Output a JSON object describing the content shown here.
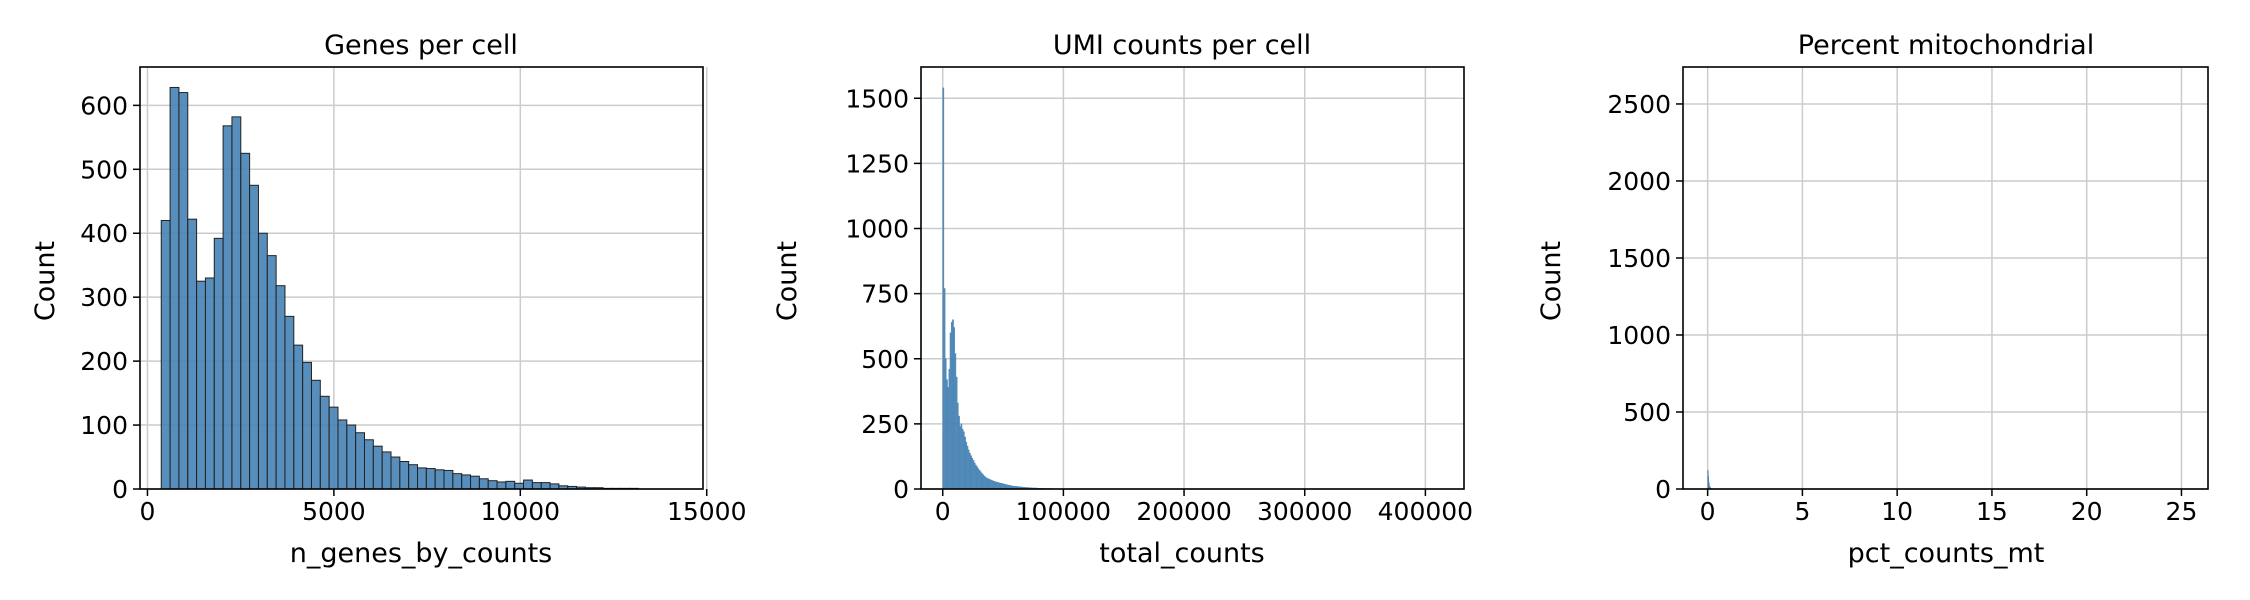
{
  "chart_data": [
    {
      "type": "bar",
      "title": "Genes per cell",
      "xlabel": "n_genes_by_counts",
      "ylabel": "Count",
      "xlim": [
        -200,
        14900
      ],
      "ylim": [
        0,
        660
      ],
      "xticks": [
        0,
        5000,
        10000,
        15000
      ],
      "xtick_labels": [
        "0",
        "5000",
        "10000",
        "15000"
      ],
      "yticks": [
        0,
        100,
        200,
        300,
        400,
        500,
        600
      ],
      "ytick_labels": [
        "0",
        "100",
        "200",
        "300",
        "400",
        "500",
        "600"
      ],
      "grid": true,
      "bin_start": 370,
      "bin_width": 237,
      "values": [
        420,
        628,
        620,
        422,
        325,
        330,
        392,
        568,
        582,
        525,
        475,
        400,
        365,
        318,
        270,
        225,
        198,
        170,
        145,
        128,
        108,
        100,
        88,
        77,
        67,
        58,
        50,
        43,
        38,
        33,
        32,
        30,
        29,
        24,
        22,
        20,
        16,
        13,
        11,
        12,
        9,
        14,
        10,
        10,
        8,
        5,
        4,
        3,
        2,
        2,
        1,
        1,
        1,
        1,
        0,
        0,
        0,
        0,
        0,
        0
      ],
      "color": "#4682b4"
    },
    {
      "type": "bar",
      "title": "UMI counts per cell",
      "xlabel": "total_counts",
      "ylabel": "Count",
      "xlim": [
        -18000,
        432000
      ],
      "ylim": [
        0,
        1620
      ],
      "xticks": [
        0,
        100000,
        200000,
        300000,
        400000
      ],
      "xtick_labels": [
        "0",
        "100000",
        "200000",
        "300000",
        "400000"
      ],
      "yticks": [
        0,
        250,
        500,
        750,
        1000,
        1250,
        1500
      ],
      "ytick_labels": [
        "0",
        "250",
        "500",
        "750",
        "1000",
        "1250",
        "1500"
      ],
      "grid": true,
      "bin_start": 0,
      "bin_width": 1000,
      "values": [
        1540,
        770,
        500,
        420,
        390,
        460,
        600,
        640,
        650,
        620,
        520,
        430,
        330,
        280,
        240,
        250,
        230,
        220,
        200,
        180,
        165,
        150,
        138,
        128,
        118,
        110,
        100,
        92,
        85,
        78,
        72,
        66,
        60,
        55,
        50,
        46,
        42,
        40,
        38,
        36,
        34,
        32,
        30,
        28,
        27,
        26,
        24,
        23,
        22,
        21,
        20,
        18,
        17,
        16,
        15,
        14,
        13,
        12,
        11,
        11,
        10,
        10,
        9,
        9,
        8,
        8,
        7,
        7,
        6,
        6,
        6,
        5,
        5,
        5,
        4,
        4,
        4,
        4,
        3,
        3,
        3,
        3,
        3,
        2,
        2,
        2,
        2,
        2,
        2,
        2,
        1,
        1,
        1,
        1,
        1,
        1,
        1,
        1,
        1,
        1
      ],
      "color": "#4682b4"
    },
    {
      "type": "bar",
      "title": "Percent mitochondrial",
      "xlabel": "pct_counts_mt",
      "ylabel": "Count",
      "xlim": [
        -1.3,
        26.4
      ],
      "ylim": [
        0,
        2740
      ],
      "xticks": [
        0,
        5,
        10,
        15,
        20,
        25
      ],
      "xtick_labels": [
        "0",
        "5",
        "10",
        "15",
        "20",
        "25"
      ],
      "yticks": [
        0,
        500,
        1000,
        1500,
        2000,
        2500
      ],
      "ytick_labels": [
        "0",
        "500",
        "1000",
        "1500",
        "2000",
        "2500"
      ],
      "grid": true,
      "bin_start": 0,
      "bin_width": 0.02,
      "values": [
        120,
        80,
        45,
        28,
        18,
        12,
        8,
        5,
        3,
        2
      ],
      "color": "#4682b4"
    }
  ]
}
